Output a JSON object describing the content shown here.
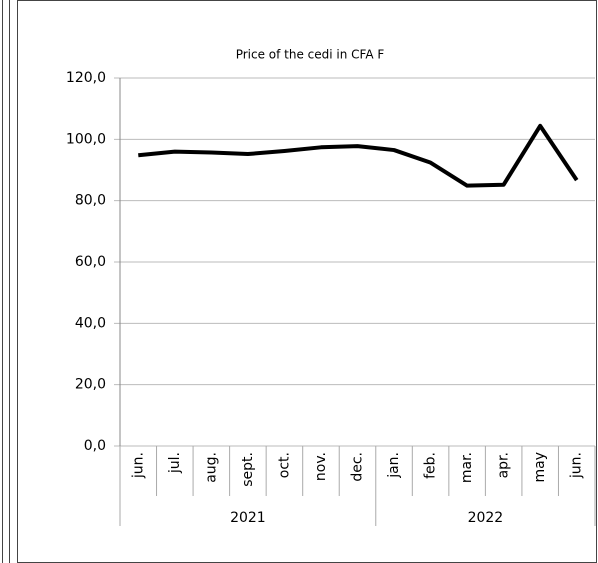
{
  "chart_data": {
    "type": "line",
    "title": "Price of the cedi in CFA F",
    "categories": [
      "jun.",
      "jul.",
      "aug.",
      "sept.",
      "oct.",
      "nov.",
      "dec.",
      "jan.",
      "feb.",
      "mar.",
      "apr.",
      "may",
      "jun."
    ],
    "category_groups": [
      {
        "label": "2021",
        "span": 7
      },
      {
        "label": "2022",
        "span": 6
      }
    ],
    "series": [
      {
        "color": "#000000",
        "values": [
          94.8,
          96.0,
          95.7,
          95.2,
          96.2,
          97.4,
          97.8,
          96.5,
          92.4,
          84.9,
          85.2,
          104.4,
          86.7
        ]
      }
    ],
    "ylim": [
      0,
      120
    ],
    "yticks": [
      {
        "value": 0,
        "label": "0,0"
      },
      {
        "value": 20,
        "label": "20,0"
      },
      {
        "value": 40,
        "label": "40,0"
      },
      {
        "value": 60,
        "label": "60,0"
      },
      {
        "value": 80,
        "label": "80,0"
      },
      {
        "value": 100,
        "label": "100,0"
      },
      {
        "value": 120,
        "label": "120,0"
      }
    ],
    "grid": true
  }
}
